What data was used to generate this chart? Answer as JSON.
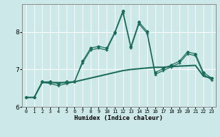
{
  "xlabel": "Humidex (Indice chaleur)",
  "background_color": "#cce8e8",
  "grid_color": "#ffffff",
  "line_color": "#1a6b5a",
  "xlim": [
    -0.5,
    23.5
  ],
  "ylim": [
    6.0,
    8.75
  ],
  "yticks": [
    6,
    7,
    8
  ],
  "xticks": [
    0,
    1,
    2,
    3,
    4,
    5,
    6,
    7,
    8,
    9,
    10,
    11,
    12,
    13,
    14,
    15,
    16,
    17,
    18,
    19,
    20,
    21,
    22,
    23
  ],
  "s1_x": [
    0,
    1,
    2,
    3,
    4,
    5,
    6,
    7,
    8,
    9,
    10,
    11,
    12,
    13,
    14,
    15,
    16,
    17,
    18,
    19,
    20,
    21,
    22,
    23
  ],
  "s1_y": [
    6.25,
    6.25,
    6.67,
    6.67,
    6.62,
    6.67,
    6.67,
    7.22,
    7.57,
    7.62,
    7.57,
    8.0,
    8.57,
    7.62,
    8.27,
    8.02,
    6.92,
    7.02,
    7.12,
    7.22,
    7.47,
    7.42,
    6.92,
    6.77
  ],
  "s2_x": [
    0,
    1,
    2,
    3,
    4,
    5,
    6,
    7,
    8,
    9,
    10,
    11,
    12,
    13,
    14,
    15,
    16,
    17,
    18,
    19,
    20,
    21,
    22,
    23
  ],
  "s2_y": [
    6.25,
    6.25,
    6.67,
    6.62,
    6.57,
    6.62,
    6.67,
    7.17,
    7.52,
    7.57,
    7.52,
    7.97,
    8.52,
    7.57,
    8.22,
    7.97,
    6.87,
    6.97,
    7.07,
    7.17,
    7.42,
    7.37,
    6.87,
    6.72
  ],
  "s3_x": [
    0,
    1,
    2,
    3,
    4,
    5,
    6,
    7,
    8,
    9,
    10,
    11,
    12,
    13,
    14,
    15,
    16,
    17,
    18,
    19,
    20,
    21,
    22,
    23
  ],
  "s3_y": [
    6.25,
    6.25,
    6.65,
    6.65,
    6.65,
    6.65,
    6.67,
    6.72,
    6.77,
    6.82,
    6.87,
    6.92,
    6.97,
    7.0,
    7.02,
    7.04,
    7.06,
    7.06,
    7.08,
    7.09,
    7.1,
    7.11,
    6.82,
    6.77
  ]
}
